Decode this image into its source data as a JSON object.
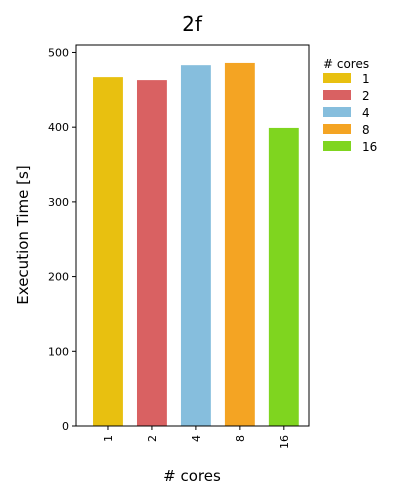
{
  "chart_data": {
    "type": "bar",
    "title": "2f",
    "xlabel": "# cores",
    "ylabel": "Execution Time [s]",
    "categories": [
      "1",
      "2",
      "4",
      "8",
      "16"
    ],
    "values": [
      467,
      463,
      483,
      486,
      399
    ],
    "colors": [
      "#e8c010",
      "#d96162",
      "#86bedd",
      "#f4a423",
      "#7fd51f"
    ],
    "ylim": [
      0,
      510
    ],
    "yticks": [
      0,
      100,
      200,
      300,
      400,
      500
    ],
    "grid": false,
    "legend": {
      "title": "# cores",
      "labels": [
        "1",
        "2",
        "4",
        "8",
        "16"
      ],
      "placement": "outside-right-top"
    }
  }
}
